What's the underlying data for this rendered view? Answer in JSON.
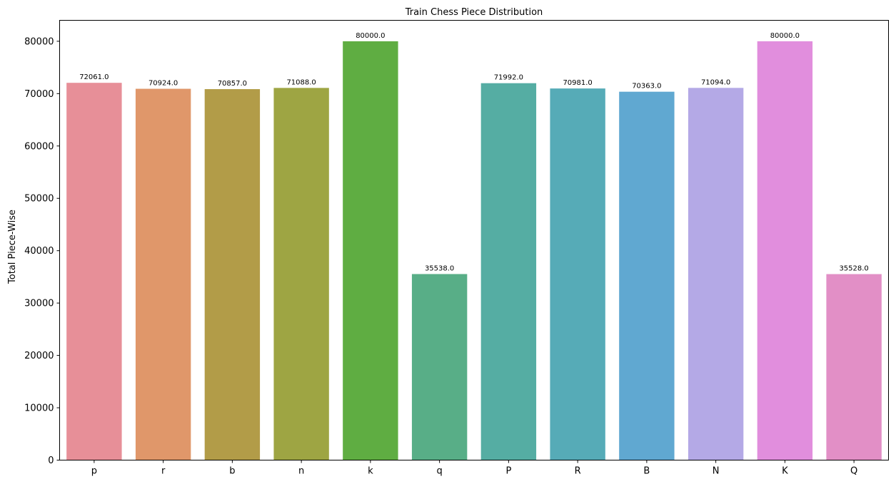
{
  "chart_data": {
    "type": "bar",
    "title": "Train Chess Piece Distribution",
    "xlabel": "",
    "ylabel": "Total Piece-Wise",
    "categories": [
      "p",
      "r",
      "b",
      "n",
      "k",
      "q",
      "P",
      "R",
      "B",
      "N",
      "K",
      "Q"
    ],
    "values": [
      72061.0,
      70924.0,
      70857.0,
      71088.0,
      80000.0,
      35538.0,
      71992.0,
      70981.0,
      70363.0,
      71094.0,
      80000.0,
      35528.0
    ],
    "value_labels": [
      "72061.0",
      "70924.0",
      "70857.0",
      "71088.0",
      "80000.0",
      "35538.0",
      "71992.0",
      "70981.0",
      "70363.0",
      "71094.0",
      "80000.0",
      "35528.0"
    ],
    "colors": [
      "#e78f98",
      "#e0976a",
      "#b29c48",
      "#9ea543",
      "#5fad42",
      "#58ae87",
      "#55ada3",
      "#56abb7",
      "#60a8d1",
      "#b4a9e6",
      "#e18edd",
      "#e28fc6"
    ],
    "ylim": [
      0,
      84000
    ],
    "yticks": [
      0,
      10000,
      20000,
      30000,
      40000,
      50000,
      60000,
      70000,
      80000
    ],
    "ytick_labels": [
      "0",
      "10000",
      "20000",
      "30000",
      "40000",
      "50000",
      "60000",
      "70000",
      "80000"
    ],
    "grid": false,
    "legend": "none"
  }
}
